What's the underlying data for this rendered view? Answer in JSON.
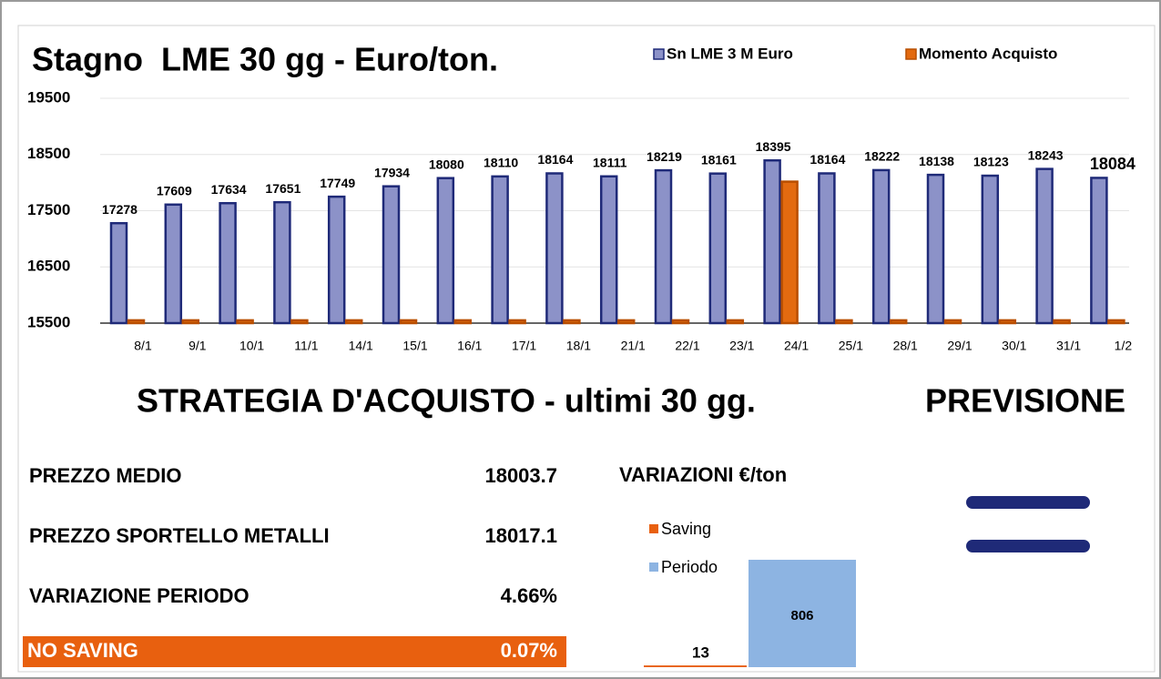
{
  "chart_data": [
    {
      "type": "bar",
      "title": "Stagno  LME 30 gg - Euro/ton.",
      "categories": [
        "8/1",
        "9/1",
        "10/1",
        "11/1",
        "14/1",
        "15/1",
        "16/1",
        "17/1",
        "18/1",
        "21/1",
        "22/1",
        "23/1",
        "24/1",
        "25/1",
        "28/1",
        "29/1",
        "30/1",
        "31/1",
        "1/2"
      ],
      "series": [
        {
          "name": "Sn LME 3 M Euro",
          "color": "#8c92c8",
          "edge": "#1f2a78",
          "values": [
            17278,
            17609,
            17634,
            17651,
            17749,
            17934,
            18080,
            18110,
            18164,
            18111,
            18219,
            18161,
            18395,
            18164,
            18222,
            18138,
            18123,
            18243,
            18084
          ]
        },
        {
          "name": "Momento Acquisto",
          "color": "#e36a10",
          "edge": "#b84e00",
          "values": [
            15550,
            15550,
            15550,
            15550,
            15550,
            15550,
            15550,
            15550,
            15550,
            15550,
            15550,
            15550,
            18017,
            15550,
            15550,
            15550,
            15550,
            15550,
            15550
          ]
        }
      ],
      "ylim": [
        15500,
        19500
      ],
      "yticks": [
        15500,
        16500,
        17500,
        18500,
        19500
      ],
      "grid": true,
      "legend": "top"
    },
    {
      "type": "bar",
      "title": "VARIAZIONI €/ton",
      "series": [
        {
          "name": "Saving",
          "color": "#e8600f",
          "values": [
            13
          ]
        },
        {
          "name": "Periodo",
          "color": "#8db4e2",
          "values": [
            806
          ]
        }
      ],
      "ylim": [
        0,
        806
      ]
    }
  ],
  "strategy": {
    "title": "STRATEGIA D'ACQUISTO - ultimi 30 gg.",
    "rows": [
      [
        "PREZZO MEDIO",
        "18003.7"
      ],
      [
        "PREZZO SPORTELLO METALLI",
        "18017.1"
      ],
      [
        "VARIAZIONE PERIODO",
        "4.66%"
      ],
      [
        "NO SAVING",
        "0.07%"
      ]
    ]
  },
  "forecast": {
    "title": "PREVISIONE"
  }
}
